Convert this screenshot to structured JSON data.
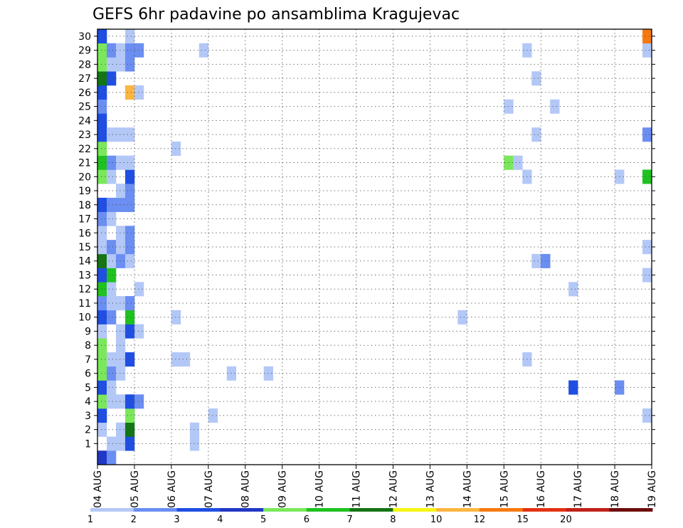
{
  "chart_data": {
    "type": "heatmap",
    "title": "GEFS 6hr padavine po ansamblima Kragujevac",
    "x_ticks": [
      "04 AUG",
      "05 AUG",
      "06 AUG",
      "07 AUG",
      "08 AUG",
      "09 AUG",
      "10 AUG",
      "11 AUG",
      "12 AUG",
      "13 AUG",
      "14 AUG",
      "15 AUG",
      "16 AUG",
      "17 AUG",
      "18 AUG",
      "19 AUG"
    ],
    "y_ticks": [
      "1",
      "2",
      "3",
      "4",
      "5",
      "6",
      "7",
      "8",
      "9",
      "10",
      "11",
      "12",
      "13",
      "14",
      "15",
      "16",
      "17",
      "18",
      "19",
      "20",
      "21",
      "22",
      "23",
      "24",
      "25",
      "26",
      "27",
      "28",
      "29",
      "30"
    ],
    "x_range": [
      "04 AUG 00Z",
      "19 AUG 00Z"
    ],
    "y_range": [
      0,
      30
    ],
    "grid": true,
    "colorbar": {
      "labels": [
        "1",
        "2",
        "3",
        "4",
        "5",
        "6",
        "7",
        "8",
        "10",
        "12",
        "15",
        "20"
      ],
      "colors": [
        "#b3c8f7",
        "#6b8ef2",
        "#1f4ee2",
        "#2137c5",
        "#7ae85a",
        "#1fc21f",
        "#137513",
        "#f5f514",
        "#fbb540",
        "#f7790f",
        "#e43212",
        "#c12118",
        "#6e0c0c"
      ]
    },
    "step_hours": 6,
    "step_origin": "04 AUG 00Z",
    "cells": [
      {
        "member": 0,
        "step": 0,
        "level": 4
      },
      {
        "member": 0,
        "step": 1,
        "level": 2
      },
      {
        "member": 1,
        "step": 1,
        "level": 1
      },
      {
        "member": 1,
        "step": 2,
        "level": 1
      },
      {
        "member": 1,
        "step": 3,
        "level": 3
      },
      {
        "member": 1,
        "step": 10,
        "level": 1
      },
      {
        "member": 2,
        "step": 0,
        "level": 1
      },
      {
        "member": 2,
        "step": 2,
        "level": 1
      },
      {
        "member": 2,
        "step": 3,
        "level": 7
      },
      {
        "member": 2,
        "step": 10,
        "level": 1
      },
      {
        "member": 3,
        "step": 0,
        "level": 3
      },
      {
        "member": 3,
        "step": 3,
        "level": 5
      },
      {
        "member": 3,
        "step": 12,
        "level": 1
      },
      {
        "member": 3,
        "step": 59,
        "level": 1
      },
      {
        "member": 4,
        "step": 0,
        "level": 5
      },
      {
        "member": 4,
        "step": 1,
        "level": 1
      },
      {
        "member": 4,
        "step": 2,
        "level": 1
      },
      {
        "member": 4,
        "step": 3,
        "level": 3
      },
      {
        "member": 4,
        "step": 4,
        "level": 2
      },
      {
        "member": 5,
        "step": 0,
        "level": 3
      },
      {
        "member": 5,
        "step": 1,
        "level": 1
      },
      {
        "member": 5,
        "step": 51,
        "level": 3
      },
      {
        "member": 5,
        "step": 56,
        "level": 2
      },
      {
        "member": 6,
        "step": 0,
        "level": 5
      },
      {
        "member": 6,
        "step": 1,
        "level": 2
      },
      {
        "member": 6,
        "step": 2,
        "level": 1
      },
      {
        "member": 6,
        "step": 14,
        "level": 1
      },
      {
        "member": 6,
        "step": 18,
        "level": 1
      },
      {
        "member": 7,
        "step": 0,
        "level": 5
      },
      {
        "member": 7,
        "step": 1,
        "level": 1
      },
      {
        "member": 7,
        "step": 2,
        "level": 1
      },
      {
        "member": 7,
        "step": 3,
        "level": 3
      },
      {
        "member": 7,
        "step": 8,
        "level": 1
      },
      {
        "member": 7,
        "step": 9,
        "level": 1
      },
      {
        "member": 7,
        "step": 46,
        "level": 1
      },
      {
        "member": 8,
        "step": 0,
        "level": 5
      },
      {
        "member": 8,
        "step": 2,
        "level": 1
      },
      {
        "member": 9,
        "step": 0,
        "level": 1
      },
      {
        "member": 9,
        "step": 2,
        "level": 1
      },
      {
        "member": 9,
        "step": 3,
        "level": 3
      },
      {
        "member": 9,
        "step": 4,
        "level": 1
      },
      {
        "member": 10,
        "step": 0,
        "level": 3
      },
      {
        "member": 10,
        "step": 1,
        "level": 2
      },
      {
        "member": 10,
        "step": 3,
        "level": 6
      },
      {
        "member": 10,
        "step": 8,
        "level": 1
      },
      {
        "member": 10,
        "step": 39,
        "level": 1
      },
      {
        "member": 11,
        "step": 0,
        "level": 2
      },
      {
        "member": 11,
        "step": 1,
        "level": 1
      },
      {
        "member": 11,
        "step": 2,
        "level": 1
      },
      {
        "member": 11,
        "step": 3,
        "level": 2
      },
      {
        "member": 12,
        "step": 0,
        "level": 6
      },
      {
        "member": 12,
        "step": 1,
        "level": 1
      },
      {
        "member": 12,
        "step": 4,
        "level": 1
      },
      {
        "member": 12,
        "step": 51,
        "level": 1
      },
      {
        "member": 13,
        "step": 0,
        "level": 3
      },
      {
        "member": 13,
        "step": 1,
        "level": 6
      },
      {
        "member": 13,
        "step": 59,
        "level": 1
      },
      {
        "member": 14,
        "step": 0,
        "level": 7
      },
      {
        "member": 14,
        "step": 1,
        "level": 1
      },
      {
        "member": 14,
        "step": 2,
        "level": 2
      },
      {
        "member": 14,
        "step": 3,
        "level": 1
      },
      {
        "member": 14,
        "step": 47,
        "level": 1
      },
      {
        "member": 14,
        "step": 48,
        "level": 2
      },
      {
        "member": 15,
        "step": 0,
        "level": 1
      },
      {
        "member": 15,
        "step": 1,
        "level": 2
      },
      {
        "member": 15,
        "step": 2,
        "level": 1
      },
      {
        "member": 15,
        "step": 3,
        "level": 2
      },
      {
        "member": 15,
        "step": 59,
        "level": 1
      },
      {
        "member": 16,
        "step": 0,
        "level": 1
      },
      {
        "member": 16,
        "step": 2,
        "level": 1
      },
      {
        "member": 16,
        "step": 3,
        "level": 2
      },
      {
        "member": 17,
        "step": 0,
        "level": 2
      },
      {
        "member": 17,
        "step": 1,
        "level": 1
      },
      {
        "member": 18,
        "step": 0,
        "level": 3
      },
      {
        "member": 18,
        "step": 1,
        "level": 2
      },
      {
        "member": 18,
        "step": 2,
        "level": 2
      },
      {
        "member": 18,
        "step": 3,
        "level": 2
      },
      {
        "member": 19,
        "step": 2,
        "level": 1
      },
      {
        "member": 19,
        "step": 3,
        "level": 2
      },
      {
        "member": 20,
        "step": 0,
        "level": 5
      },
      {
        "member": 20,
        "step": 1,
        "level": 1
      },
      {
        "member": 20,
        "step": 3,
        "level": 3
      },
      {
        "member": 20,
        "step": 46,
        "level": 1
      },
      {
        "member": 20,
        "step": 56,
        "level": 1
      },
      {
        "member": 20,
        "step": 59,
        "level": 6
      },
      {
        "member": 21,
        "step": 0,
        "level": 6
      },
      {
        "member": 21,
        "step": 1,
        "level": 2
      },
      {
        "member": 21,
        "step": 2,
        "level": 1
      },
      {
        "member": 21,
        "step": 3,
        "level": 1
      },
      {
        "member": 21,
        "step": 44,
        "level": 5
      },
      {
        "member": 21,
        "step": 45,
        "level": 1
      },
      {
        "member": 22,
        "step": 0,
        "level": 5
      },
      {
        "member": 22,
        "step": 8,
        "level": 1
      },
      {
        "member": 23,
        "step": 0,
        "level": 3
      },
      {
        "member": 23,
        "step": 1,
        "level": 1
      },
      {
        "member": 23,
        "step": 2,
        "level": 1
      },
      {
        "member": 23,
        "step": 3,
        "level": 1
      },
      {
        "member": 23,
        "step": 47,
        "level": 1
      },
      {
        "member": 23,
        "step": 59,
        "level": 2
      },
      {
        "member": 24,
        "step": 0,
        "level": 3
      },
      {
        "member": 25,
        "step": 0,
        "level": 2
      },
      {
        "member": 25,
        "step": 44,
        "level": 1
      },
      {
        "member": 25,
        "step": 49,
        "level": 1
      },
      {
        "member": 26,
        "step": 0,
        "level": 3
      },
      {
        "member": 26,
        "step": 3,
        "level": 9
      },
      {
        "member": 26,
        "step": 4,
        "level": 1
      },
      {
        "member": 27,
        "step": 0,
        "level": 7
      },
      {
        "member": 27,
        "step": 1,
        "level": 3
      },
      {
        "member": 27,
        "step": 47,
        "level": 1
      },
      {
        "member": 28,
        "step": 0,
        "level": 5
      },
      {
        "member": 28,
        "step": 1,
        "level": 1
      },
      {
        "member": 28,
        "step": 2,
        "level": 1
      },
      {
        "member": 28,
        "step": 3,
        "level": 2
      },
      {
        "member": 29,
        "step": 0,
        "level": 5
      },
      {
        "member": 29,
        "step": 1,
        "level": 2
      },
      {
        "member": 29,
        "step": 2,
        "level": 1
      },
      {
        "member": 29,
        "step": 3,
        "level": 2
      },
      {
        "member": 29,
        "step": 4,
        "level": 2
      },
      {
        "member": 29,
        "step": 11,
        "level": 1
      },
      {
        "member": 29,
        "step": 46,
        "level": 1
      },
      {
        "member": 29,
        "step": 59,
        "level": 1
      },
      {
        "member": 30,
        "step": 0,
        "level": 3
      },
      {
        "member": 30,
        "step": 3,
        "level": 1
      },
      {
        "member": 30,
        "step": 59,
        "level": 10
      }
    ]
  }
}
